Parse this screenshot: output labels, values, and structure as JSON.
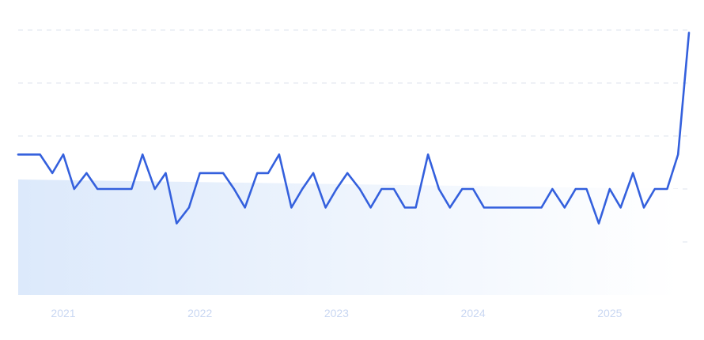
{
  "chart_data": {
    "type": "line",
    "title": "",
    "xlabel": "",
    "ylabel": "",
    "x_ticks": [
      "2021",
      "2022",
      "2023",
      "2024",
      "2025"
    ],
    "x_tick_positions": [
      2021.0,
      2022.0,
      2023.0,
      2024.0,
      2025.0
    ],
    "xlim": [
      2020.67,
      2025.58
    ],
    "ylim": [
      0,
      5
    ],
    "y_grid": [
      0,
      1,
      2,
      3,
      4,
      5
    ],
    "grid": true,
    "x": [
      2020.67,
      2020.75,
      2020.83,
      2020.92,
      2021.0,
      2021.08,
      2021.17,
      2021.25,
      2021.33,
      2021.42,
      2021.5,
      2021.58,
      2021.67,
      2021.75,
      2021.83,
      2021.92,
      2022.0,
      2022.08,
      2022.17,
      2022.25,
      2022.33,
      2022.42,
      2022.5,
      2022.58,
      2022.67,
      2022.75,
      2022.83,
      2022.92,
      2023.0,
      2023.08,
      2023.17,
      2023.25,
      2023.33,
      2023.42,
      2023.5,
      2023.58,
      2023.67,
      2023.75,
      2023.83,
      2023.92,
      2024.0,
      2024.08,
      2024.17,
      2024.25,
      2024.33,
      2024.42,
      2024.5,
      2024.58,
      2024.67,
      2024.75,
      2024.83,
      2024.92,
      2025.0,
      2025.08,
      2025.17,
      2025.25,
      2025.33,
      2025.42,
      2025.5,
      2025.58
    ],
    "series": [
      {
        "color": "#3460dd",
        "values": [
          2.65,
          2.65,
          2.65,
          2.3,
          2.65,
          2.0,
          2.3,
          2.0,
          2.0,
          2.0,
          2.0,
          2.65,
          2.0,
          2.3,
          1.35,
          1.65,
          2.3,
          2.3,
          2.3,
          2.0,
          1.65,
          2.3,
          2.3,
          2.65,
          1.65,
          2.0,
          2.3,
          1.65,
          2.0,
          2.3,
          2.0,
          1.65,
          2.0,
          2.0,
          1.65,
          1.65,
          2.65,
          2.0,
          1.65,
          2.0,
          2.0,
          1.65,
          1.65,
          1.65,
          1.65,
          1.65,
          1.65,
          2.0,
          1.65,
          2.0,
          2.0,
          1.35,
          2.0,
          1.65,
          2.3,
          1.65,
          2.0,
          2.0,
          2.65,
          4.95
        ]
      }
    ],
    "area_fill": {
      "start_color": "#dce9fb",
      "end_color": "#ffffff"
    }
  }
}
